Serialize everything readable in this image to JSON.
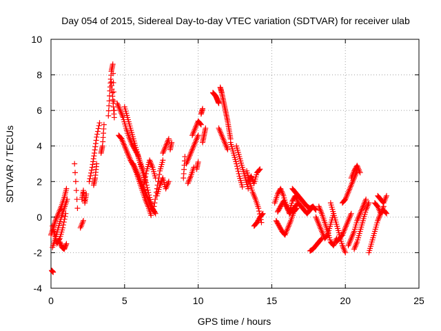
{
  "chart_data": {
    "type": "scatter",
    "title": "Day 054 of 2015, Sidereal Day-to-day VTEC variation (SDTVAR) for receiver ulab",
    "xlabel": "GPS time / hours",
    "ylabel": "SDTVAR / TECUs",
    "xlim": [
      0,
      25
    ],
    "ylim": [
      -4,
      10
    ],
    "xticks": [
      0,
      5,
      10,
      15,
      20,
      25
    ],
    "yticks": [
      -4,
      -2,
      0,
      2,
      4,
      6,
      8,
      10
    ],
    "grid": true,
    "marker": "+",
    "series_color": "#ff0000",
    "series": [
      {
        "name": "SDTVAR",
        "segments": [
          {
            "x": [
              0.0,
              0.15,
              0.3,
              0.5,
              0.7,
              0.9,
              1.05
            ],
            "y": [
              -1.0,
              -0.6,
              -0.2,
              0.2,
              0.6,
              1.1,
              1.6
            ]
          },
          {
            "x": [
              0.1,
              0.3,
              0.5,
              0.7,
              0.9,
              1.1
            ],
            "y": [
              -1.7,
              -1.2,
              -0.6,
              0.0,
              0.5,
              1.0
            ]
          },
          {
            "x": [
              0.1,
              0.25,
              0.4,
              0.6,
              0.8,
              1.0
            ],
            "y": [
              -0.5,
              -1.0,
              -1.5,
              -1.2,
              -0.6,
              0.2
            ]
          },
          {
            "x": [
              0.6,
              0.75,
              0.9,
              1.05
            ],
            "y": [
              -1.4,
              -1.7,
              -1.8,
              -1.5
            ]
          },
          {
            "x": [
              0.05,
              0.15
            ],
            "y": [
              -3.0,
              -3.1
            ]
          },
          {
            "x": [
              1.6,
              1.8
            ],
            "y": [
              3.0,
              0.5
            ]
          },
          {
            "x": [
              2.1,
              2.2,
              2.3,
              2.4
            ],
            "y": [
              1.0,
              1.5,
              0.8,
              1.3
            ]
          },
          {
            "x": [
              2.0,
              2.2
            ],
            "y": [
              -0.6,
              -0.2
            ]
          },
          {
            "x": [
              2.6,
              2.8,
              2.95,
              3.1,
              3.3
            ],
            "y": [
              2.0,
              2.8,
              3.6,
              4.5,
              5.3
            ]
          },
          {
            "x": [
              2.9,
              3.0,
              3.1
            ],
            "y": [
              1.8,
              2.2,
              3.0
            ]
          },
          {
            "x": [
              3.4,
              3.5,
              3.6
            ],
            "y": [
              3.6,
              4.0,
              5.2
            ]
          },
          {
            "x": [
              3.9,
              4.0,
              4.1,
              4.2,
              4.3
            ],
            "y": [
              5.7,
              7.1,
              8.2,
              8.6,
              6.0
            ]
          },
          {
            "x": [
              4.1,
              4.2,
              4.3
            ],
            "y": [
              7.6,
              6.6,
              5.6
            ]
          },
          {
            "x": [
              4.5,
              4.7,
              4.9,
              5.1,
              5.3,
              5.5,
              5.7,
              5.9,
              6.1,
              6.3,
              6.5,
              6.7,
              6.9,
              7.1
            ],
            "y": [
              6.4,
              6.0,
              5.6,
              5.0,
              4.5,
              4.1,
              3.8,
              3.5,
              3.0,
              2.5,
              1.8,
              1.1,
              0.5,
              0.2
            ]
          },
          {
            "x": [
              4.6,
              4.8,
              5.0,
              5.2,
              5.4,
              5.6,
              5.8,
              6.0,
              6.2,
              6.4,
              6.6,
              6.8
            ],
            "y": [
              4.6,
              4.4,
              4.0,
              3.6,
              3.2,
              2.9,
              2.5,
              2.0,
              1.5,
              1.0,
              0.6,
              0.1
            ]
          },
          {
            "x": [
              5.0,
              5.2,
              5.4,
              5.6,
              5.8,
              6.0,
              6.2,
              6.4
            ],
            "y": [
              6.2,
              5.6,
              5.0,
              4.4,
              3.8,
              3.2,
              2.6,
              2.0
            ]
          },
          {
            "x": [
              5.6,
              5.8,
              6.0,
              6.2,
              6.4,
              6.6,
              6.8,
              7.0
            ],
            "y": [
              3.0,
              2.6,
              2.2,
              1.8,
              1.4,
              1.0,
              0.6,
              0.3
            ]
          },
          {
            "x": [
              6.3,
              6.5,
              6.7,
              6.9,
              7.1
            ],
            "y": [
              1.8,
              2.6,
              3.2,
              2.8,
              2.2
            ]
          },
          {
            "x": [
              7.0,
              7.2,
              7.4,
              7.6
            ],
            "y": [
              0.6,
              1.6,
              2.6,
              3.2
            ]
          },
          {
            "x": [
              7.2,
              7.4,
              7.6,
              7.8,
              8.0
            ],
            "y": [
              1.2,
              1.8,
              2.2,
              1.6,
              2.0
            ]
          },
          {
            "x": [
              7.6,
              7.8,
              8.0
            ],
            "y": [
              3.6,
              4.0,
              4.4
            ]
          },
          {
            "x": [
              8.1,
              8.2
            ],
            "y": [
              3.8,
              4.2
            ]
          },
          {
            "x": [
              9.0,
              9.1
            ],
            "y": [
              2.2,
              3.4
            ]
          },
          {
            "x": [
              9.3,
              9.5,
              9.7
            ],
            "y": [
              1.9,
              2.3,
              2.8
            ]
          },
          {
            "x": [
              9.2,
              9.4,
              9.6,
              9.8,
              10.0
            ],
            "y": [
              3.0,
              3.4,
              3.8,
              4.2,
              4.6
            ]
          },
          {
            "x": [
              9.6,
              9.8,
              10.0,
              10.2
            ],
            "y": [
              4.6,
              5.0,
              5.4,
              5.2
            ]
          },
          {
            "x": [
              10.3,
              10.4,
              10.5
            ],
            "y": [
              4.2,
              4.6,
              5.0
            ]
          },
          {
            "x": [
              9.9,
              10.0
            ],
            "y": [
              2.7,
              3.1
            ]
          },
          {
            "x": [
              10.2,
              10.3
            ],
            "y": [
              5.8,
              6.1
            ]
          },
          {
            "x": [
              11.0,
              11.1,
              11.2,
              11.3,
              11.4
            ],
            "y": [
              7.0,
              6.9,
              6.8,
              6.6,
              6.4
            ]
          },
          {
            "x": [
              11.5,
              11.6,
              11.7,
              11.8,
              11.9,
              12.0,
              12.1,
              12.2
            ],
            "y": [
              7.3,
              7.0,
              6.6,
              6.2,
              5.8,
              5.4,
              4.9,
              4.4
            ]
          },
          {
            "x": [
              11.4,
              11.6,
              11.8,
              12.0
            ],
            "y": [
              5.0,
              4.6,
              4.2,
              3.8
            ]
          },
          {
            "x": [
              12.2,
              12.4,
              12.6,
              12.8,
              13.0
            ],
            "y": [
              4.2,
              3.6,
              3.0,
              2.3,
              1.7
            ]
          },
          {
            "x": [
              12.6,
              12.8,
              13.0,
              13.2,
              13.4
            ],
            "y": [
              4.0,
              3.4,
              2.8,
              2.2,
              1.6
            ]
          },
          {
            "x": [
              13.3,
              13.5,
              13.7,
              13.9,
              14.1,
              14.3
            ],
            "y": [
              2.6,
              2.0,
              1.4,
              1.0,
              0.5,
              -0.3
            ]
          },
          {
            "x": [
              13.4,
              13.6,
              13.8,
              14.0,
              14.2
            ],
            "y": [
              2.0,
              2.3,
              1.9,
              2.5,
              2.7
            ]
          },
          {
            "x": [
              13.8,
              14.0,
              14.2,
              14.4
            ],
            "y": [
              -0.5,
              -0.3,
              0.0,
              0.2
            ]
          },
          {
            "x": [
              15.2,
              15.4,
              15.6,
              15.8,
              16.0,
              16.2
            ],
            "y": [
              0.8,
              1.3,
              1.6,
              1.2,
              0.6,
              0.2
            ]
          },
          {
            "x": [
              15.3,
              15.5,
              15.7,
              15.9,
              16.1,
              16.3,
              16.5,
              16.7
            ],
            "y": [
              -0.2,
              -0.5,
              -0.8,
              -1.0,
              -0.6,
              -0.2,
              0.3,
              0.5
            ]
          },
          {
            "x": [
              15.4,
              15.6,
              15.8,
              16.0,
              16.2,
              16.4,
              16.6,
              16.8
            ],
            "y": [
              0.3,
              0.6,
              0.9,
              0.6,
              0.3,
              0.9,
              1.2,
              0.8
            ]
          },
          {
            "x": [
              16.4,
              16.6,
              16.8,
              17.0,
              17.2,
              17.4,
              17.6,
              17.8,
              18.0
            ],
            "y": [
              1.6,
              1.4,
              1.2,
              1.0,
              0.8,
              0.6,
              0.5,
              0.6,
              0.4
            ]
          },
          {
            "x": [
              16.2,
              16.4,
              16.6,
              16.8,
              17.0,
              17.2,
              17.4,
              17.6,
              17.8
            ],
            "y": [
              0.2,
              0.4,
              0.6,
              0.8,
              0.6,
              0.4,
              0.2,
              0.4,
              0.6
            ]
          },
          {
            "x": [
              17.6,
              17.8,
              18.0,
              18.2,
              18.4
            ],
            "y": [
              -1.9,
              -1.8,
              -1.6,
              -1.4,
              -1.2
            ]
          },
          {
            "x": [
              18.0,
              18.2,
              18.4,
              18.6,
              18.8,
              19.0,
              19.2
            ],
            "y": [
              0.0,
              -0.4,
              -0.8,
              -1.2,
              -1.0,
              -0.4,
              0.2
            ]
          },
          {
            "x": [
              18.2,
              18.4,
              18.6,
              18.8,
              19.0,
              19.2,
              19.4
            ],
            "y": [
              0.6,
              0.2,
              -0.3,
              -0.8,
              -1.4,
              -1.6,
              -1.2
            ]
          },
          {
            "x": [
              19.0,
              19.2,
              19.4,
              19.6,
              19.8,
              20.0
            ],
            "y": [
              0.8,
              0.2,
              -0.4,
              -1.0,
              -1.6,
              -2.0
            ]
          },
          {
            "x": [
              19.4,
              19.6,
              19.8,
              20.0,
              20.2,
              20.4
            ],
            "y": [
              -1.4,
              -1.2,
              -1.0,
              -0.6,
              -0.2,
              0.2
            ]
          },
          {
            "x": [
              19.8,
              20.0,
              20.2,
              20.4,
              20.6,
              20.8
            ],
            "y": [
              0.8,
              1.0,
              1.4,
              1.8,
              2.2,
              2.6
            ]
          },
          {
            "x": [
              20.4,
              20.6,
              20.8,
              21.0
            ],
            "y": [
              2.2,
              2.6,
              2.9,
              2.5
            ]
          },
          {
            "x": [
              20.2,
              20.4,
              20.6,
              20.8,
              21.0,
              21.2,
              21.4
            ],
            "y": [
              -1.6,
              -1.2,
              -0.8,
              -0.2,
              0.2,
              0.6,
              1.0
            ]
          },
          {
            "x": [
              20.6,
              20.8,
              21.0,
              21.2,
              21.4,
              21.6
            ],
            "y": [
              -1.8,
              -1.4,
              -0.8,
              -0.2,
              0.4,
              0.8
            ]
          },
          {
            "x": [
              21.6,
              21.8,
              22.0,
              22.2,
              22.4,
              22.6
            ],
            "y": [
              -2.0,
              -1.4,
              -0.8,
              -0.2,
              0.2,
              0.6
            ]
          },
          {
            "x": [
              22.0,
              22.2,
              22.4,
              22.6,
              22.8
            ],
            "y": [
              0.8,
              0.6,
              0.2,
              0.4,
              0.2
            ]
          },
          {
            "x": [
              22.2,
              22.4,
              22.6,
              22.8
            ],
            "y": [
              1.2,
              1.0,
              0.8,
              1.2
            ]
          }
        ]
      }
    ]
  }
}
